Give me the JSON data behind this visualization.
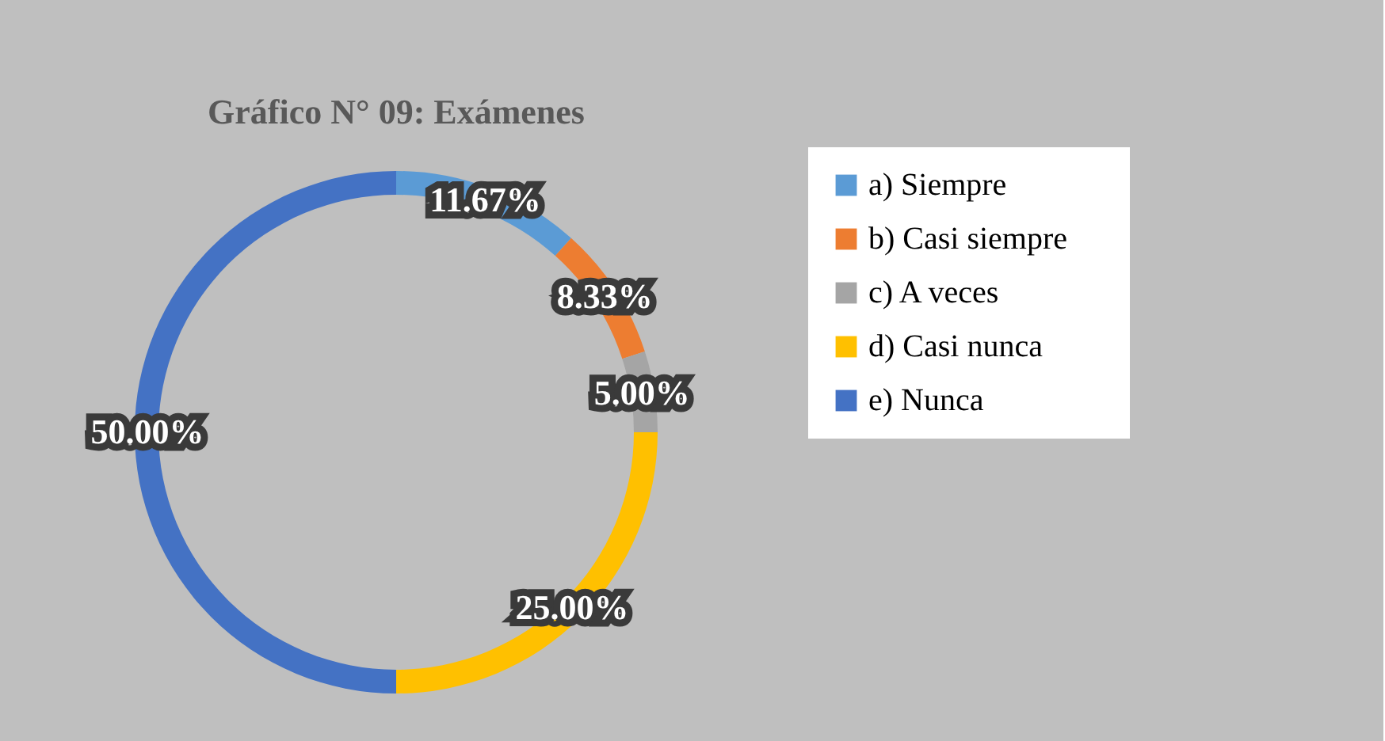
{
  "chart_data": {
    "type": "donut",
    "title": "Gráfico  N° 09: Exámenes",
    "categories": [
      "a)      Siempre",
      "b)      Casi siempre",
      "c)       A veces",
      "d)      Casi nunca",
      "e)      Nunca"
    ],
    "values": [
      11.67,
      8.33,
      5.0,
      25.0,
      50.0
    ],
    "colors": [
      "#5b9bd5",
      "#ed7d31",
      "#a5a5a5",
      "#ffc000",
      "#4472c4"
    ],
    "value_labels": [
      "11.67%",
      "8.33%",
      "5.00%",
      "25.00%",
      "50.00%"
    ],
    "legend": "right"
  }
}
